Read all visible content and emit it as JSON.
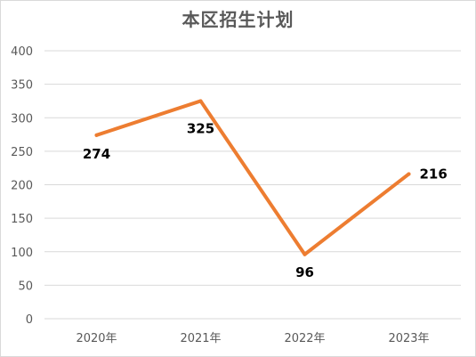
{
  "chart_data": {
    "type": "line",
    "title": "本区招生计划",
    "categories": [
      "2020年",
      "2021年",
      "2022年",
      "2023年"
    ],
    "series": [
      {
        "values": [
          274,
          325,
          96,
          216
        ],
        "color": "#ed7d31"
      }
    ],
    "data_labels": [
      "274",
      "325",
      "96",
      "216"
    ],
    "y_ticks": [
      "0",
      "50",
      "100",
      "150",
      "200",
      "250",
      "300",
      "350",
      "400"
    ],
    "ylim": [
      0,
      400
    ],
    "grid": true,
    "legend": "none",
    "gridline_color": "#d9d9d9"
  }
}
